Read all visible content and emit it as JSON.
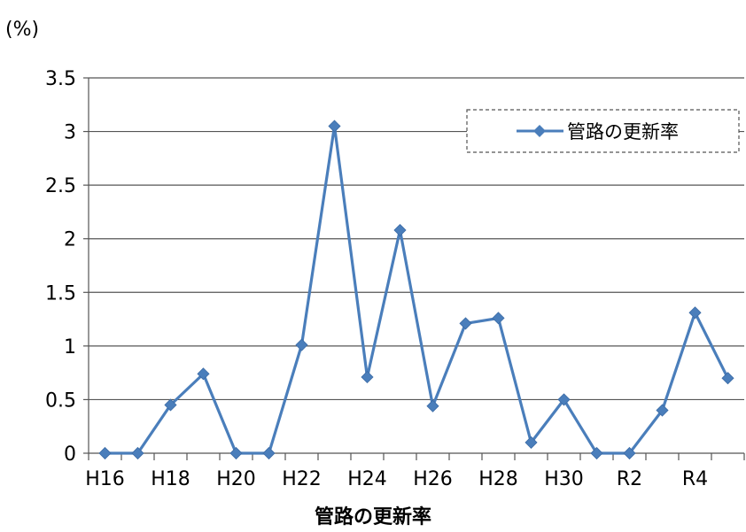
{
  "chart_data": {
    "type": "line",
    "unit_label": "(%)",
    "xlabel": "管路の更新率",
    "ylabel": "",
    "ylim": [
      0,
      3.5
    ],
    "y_ticks": [
      "0",
      "0.5",
      "1",
      "1.5",
      "2",
      "2.5",
      "3",
      "3.5"
    ],
    "x_tick_labels": [
      "H16",
      "H18",
      "H20",
      "H22",
      "H24",
      "H26",
      "H28",
      "H30",
      "R2",
      "R4"
    ],
    "categories": [
      "H16",
      "H17",
      "H18",
      "H19",
      "H20",
      "H21",
      "H22",
      "H23",
      "H24",
      "H25",
      "H26",
      "H27",
      "H28",
      "H29",
      "H30",
      "R1",
      "R2",
      "R3",
      "R4",
      "R5"
    ],
    "grid": true,
    "legend_position": "top-right",
    "series": [
      {
        "name": "管路の更新率",
        "color": "#4a7ebb",
        "values": [
          0,
          0,
          0.45,
          0.74,
          0,
          0,
          1.01,
          3.05,
          0.71,
          2.08,
          0.44,
          1.21,
          1.26,
          0.1,
          0.5,
          0,
          0,
          0.4,
          1.31,
          0.7
        ]
      }
    ]
  }
}
